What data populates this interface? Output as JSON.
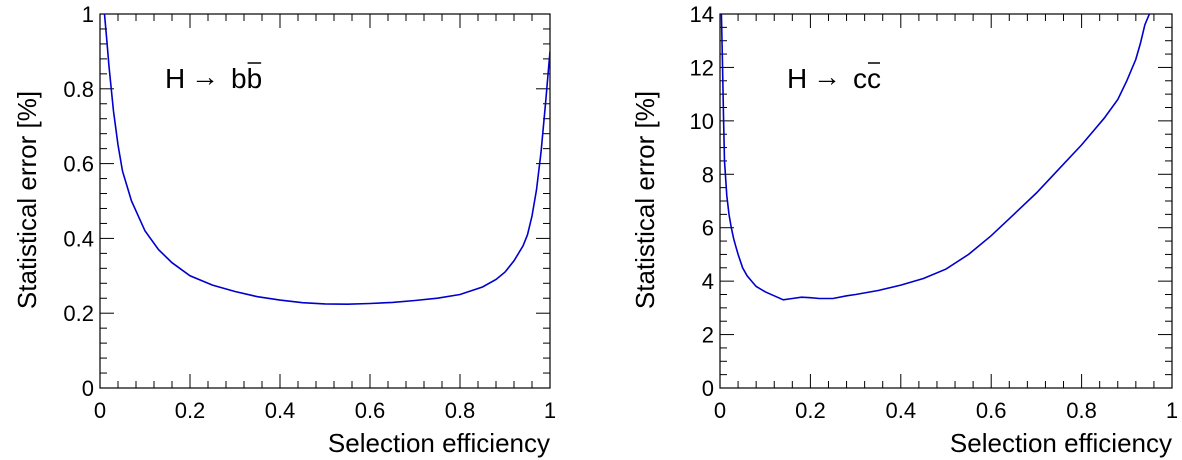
{
  "chart_data": [
    {
      "type": "line",
      "title": "",
      "xlabel": "Selection efficiency",
      "ylabel": "Statistical error [%]",
      "xlim": [
        0,
        1
      ],
      "ylim": [
        0,
        1
      ],
      "xticks": [
        "0",
        "0.2",
        "0.4",
        "0.6",
        "0.8",
        "1"
      ],
      "yticks": [
        "0",
        "0.2",
        "0.4",
        "0.6",
        "0.8",
        "1"
      ],
      "annotation": {
        "prefix": "H",
        "arrow": "→",
        "text": "bb",
        "bar_letter": "b"
      },
      "grid": false,
      "line_color": "#0000cc",
      "series": [
        {
          "x": [
            0.01,
            0.015,
            0.02,
            0.03,
            0.04,
            0.05,
            0.07,
            0.1,
            0.13,
            0.16,
            0.2,
            0.25,
            0.3,
            0.35,
            0.4,
            0.45,
            0.5,
            0.55,
            0.6,
            0.65,
            0.7,
            0.75,
            0.8,
            0.85,
            0.88,
            0.9,
            0.92,
            0.94,
            0.95,
            0.96,
            0.97,
            0.98,
            0.99,
            1.0
          ],
          "y": [
            1.0,
            0.93,
            0.86,
            0.74,
            0.65,
            0.58,
            0.5,
            0.42,
            0.37,
            0.335,
            0.3,
            0.275,
            0.258,
            0.244,
            0.235,
            0.228,
            0.225,
            0.224,
            0.226,
            0.229,
            0.234,
            0.24,
            0.25,
            0.27,
            0.29,
            0.31,
            0.34,
            0.38,
            0.41,
            0.46,
            0.53,
            0.63,
            0.76,
            0.9
          ]
        }
      ]
    },
    {
      "type": "line",
      "title": "",
      "xlabel": "Selection efficiency",
      "ylabel": "Statistical error [%]",
      "xlim": [
        0,
        1
      ],
      "ylim": [
        0,
        14
      ],
      "xticks": [
        "0",
        "0.2",
        "0.4",
        "0.6",
        "0.8",
        "1"
      ],
      "yticks": [
        "0",
        "2",
        "4",
        "6",
        "8",
        "10",
        "12",
        "14"
      ],
      "annotation": {
        "prefix": "H",
        "arrow": "→",
        "text": "cc",
        "bar_letter": "c"
      },
      "grid": false,
      "line_color": "#0000cc",
      "series": [
        {
          "x": [
            0.003,
            0.005,
            0.008,
            0.01,
            0.015,
            0.02,
            0.025,
            0.03,
            0.035,
            0.04,
            0.05,
            0.06,
            0.07,
            0.08,
            0.1,
            0.12,
            0.14,
            0.16,
            0.18,
            0.2,
            0.22,
            0.25,
            0.28,
            0.3,
            0.35,
            0.4,
            0.45,
            0.5,
            0.55,
            0.6,
            0.65,
            0.7,
            0.75,
            0.8,
            0.85,
            0.88,
            0.9,
            0.92,
            0.93,
            0.94,
            0.95
          ],
          "y": [
            14.0,
            12.5,
            10.0,
            8.5,
            7.2,
            6.5,
            6.0,
            5.6,
            5.3,
            5.0,
            4.5,
            4.2,
            4.0,
            3.8,
            3.6,
            3.45,
            3.3,
            3.35,
            3.4,
            3.38,
            3.35,
            3.35,
            3.45,
            3.5,
            3.65,
            3.85,
            4.1,
            4.45,
            5.0,
            5.7,
            6.5,
            7.3,
            8.2,
            9.1,
            10.1,
            10.8,
            11.5,
            12.3,
            12.9,
            13.6,
            14.0
          ]
        }
      ]
    }
  ]
}
